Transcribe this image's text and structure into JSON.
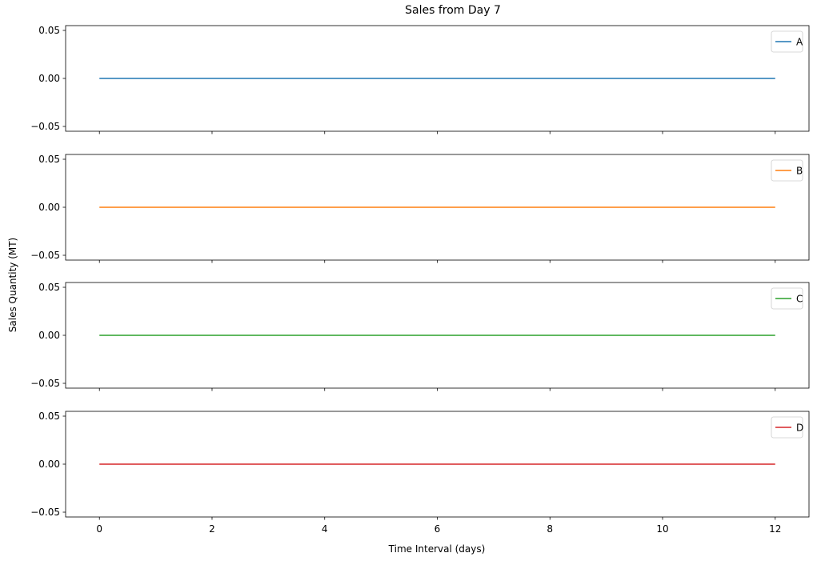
{
  "chart_data": {
    "type": "line",
    "title": "Sales from Day 7",
    "xlabel": "Time Interval (days)",
    "ylabel": "Sales Quantity (MT)",
    "xlim": [
      -0.6,
      12.6
    ],
    "ylim": [
      -0.055,
      0.055
    ],
    "x_ticks": [
      0,
      2,
      4,
      6,
      8,
      10,
      12
    ],
    "x_tick_labels": [
      "0",
      "2",
      "4",
      "6",
      "8",
      "10",
      "12"
    ],
    "y_ticks": [
      -0.05,
      0.0,
      0.05
    ],
    "y_tick_labels": [
      "−0.05",
      "0.00",
      "0.05"
    ],
    "grid": false,
    "legend_position": "top-right",
    "shared_x": true,
    "series": [
      {
        "name": "A",
        "color": "#1f77b4",
        "x": [
          0,
          1,
          2,
          3,
          4,
          5,
          6,
          7,
          8,
          9,
          10,
          11,
          12
        ],
        "values": [
          0,
          0,
          0,
          0,
          0,
          0,
          0,
          0,
          0,
          0,
          0,
          0,
          0
        ]
      },
      {
        "name": "B",
        "color": "#ff7f0e",
        "x": [
          0,
          1,
          2,
          3,
          4,
          5,
          6,
          7,
          8,
          9,
          10,
          11,
          12
        ],
        "values": [
          0,
          0,
          0,
          0,
          0,
          0,
          0,
          0,
          0,
          0,
          0,
          0,
          0
        ]
      },
      {
        "name": "C",
        "color": "#2ca02c",
        "x": [
          0,
          1,
          2,
          3,
          4,
          5,
          6,
          7,
          8,
          9,
          10,
          11,
          12
        ],
        "values": [
          0,
          0,
          0,
          0,
          0,
          0,
          0,
          0,
          0,
          0,
          0,
          0,
          0
        ]
      },
      {
        "name": "D",
        "color": "#d62728",
        "x": [
          0,
          1,
          2,
          3,
          4,
          5,
          6,
          7,
          8,
          9,
          10,
          11,
          12
        ],
        "values": [
          0,
          0,
          0,
          0,
          0,
          0,
          0,
          0,
          0,
          0,
          0,
          0,
          0
        ]
      }
    ]
  }
}
